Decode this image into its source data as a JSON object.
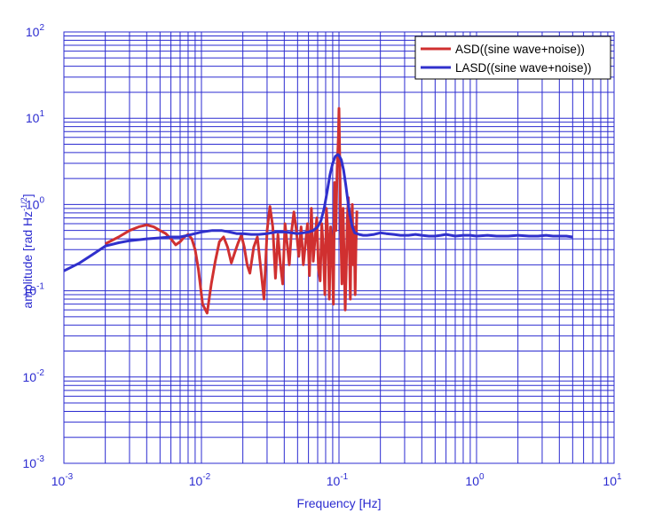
{
  "chart_data": {
    "type": "line",
    "xlabel": "Frequency  [Hz]",
    "ylabel": "amplitude  [rad Hz",
    "ylabel_sup": "-1/2",
    "ylabel_close": "]",
    "x_scale": "log",
    "y_scale": "log",
    "xlim": [
      0.001,
      10
    ],
    "ylim": [
      0.001,
      100
    ],
    "grid": true,
    "legend_position": "top-right",
    "x_ticks": [
      {
        "value": 0.001,
        "base": "10",
        "exp": "-3"
      },
      {
        "value": 0.01,
        "base": "10",
        "exp": "-2"
      },
      {
        "value": 0.1,
        "base": "10",
        "exp": "-1"
      },
      {
        "value": 1,
        "base": "10",
        "exp": "0"
      },
      {
        "value": 10,
        "base": "10",
        "exp": "1"
      }
    ],
    "y_ticks": [
      {
        "value": 0.001,
        "base": "10",
        "exp": "-3"
      },
      {
        "value": 0.01,
        "base": "10",
        "exp": "-2"
      },
      {
        "value": 0.1,
        "base": "10",
        "exp": "-1"
      },
      {
        "value": 1,
        "base": "10",
        "exp": "0"
      },
      {
        "value": 10,
        "base": "10",
        "exp": "1"
      },
      {
        "value": 100,
        "base": "10",
        "exp": "2"
      }
    ],
    "series": [
      {
        "name": "ASD((sine wave+noise))",
        "color": "#d03030",
        "x": [
          0.002,
          0.0025,
          0.003,
          0.0035,
          0.004,
          0.0045,
          0.005,
          0.0055,
          0.006,
          0.0065,
          0.007,
          0.0075,
          0.008,
          0.0085,
          0.009,
          0.0095,
          0.0102,
          0.011,
          0.0118,
          0.0126,
          0.0135,
          0.0145,
          0.0155,
          0.0165,
          0.0175,
          0.0185,
          0.0195,
          0.0205,
          0.0215,
          0.0225,
          0.024,
          0.0255,
          0.027,
          0.0285,
          0.03,
          0.0315,
          0.033,
          0.0345,
          0.036,
          0.0375,
          0.039,
          0.0405,
          0.042,
          0.0435,
          0.045,
          0.047,
          0.049,
          0.051,
          0.053,
          0.055,
          0.057,
          0.059,
          0.061,
          0.063,
          0.065,
          0.067,
          0.069,
          0.071,
          0.073,
          0.075,
          0.077,
          0.079,
          0.081,
          0.083,
          0.085,
          0.087,
          0.089,
          0.091,
          0.093,
          0.095,
          0.097,
          0.099,
          0.1,
          0.101,
          0.103,
          0.105,
          0.107,
          0.109,
          0.111,
          0.113,
          0.115,
          0.117,
          0.119,
          0.121,
          0.123,
          0.125,
          0.127,
          0.129,
          0.131,
          0.133,
          0.135
        ],
        "y": [
          0.35,
          0.42,
          0.5,
          0.55,
          0.58,
          0.55,
          0.5,
          0.46,
          0.4,
          0.34,
          0.37,
          0.42,
          0.45,
          0.4,
          0.3,
          0.18,
          0.07,
          0.055,
          0.12,
          0.22,
          0.37,
          0.42,
          0.32,
          0.21,
          0.28,
          0.36,
          0.44,
          0.32,
          0.2,
          0.16,
          0.32,
          0.42,
          0.18,
          0.08,
          0.5,
          0.95,
          0.55,
          0.14,
          0.45,
          0.2,
          0.12,
          0.6,
          0.35,
          0.2,
          0.45,
          0.82,
          0.5,
          0.25,
          0.55,
          0.2,
          0.35,
          0.6,
          0.15,
          0.9,
          0.22,
          0.4,
          0.7,
          0.18,
          0.13,
          0.6,
          0.3,
          0.09,
          0.9,
          0.45,
          0.08,
          0.55,
          0.35,
          0.07,
          1.8,
          0.5,
          2.6,
          6.0,
          13.0,
          4.5,
          0.5,
          0.12,
          0.9,
          0.25,
          0.06,
          0.18,
          0.7,
          1.2,
          0.3,
          0.08,
          0.6,
          1.0,
          0.2,
          0.55,
          0.09,
          0.35,
          0.85
        ]
      },
      {
        "name": "LASD((sine wave+noise))",
        "color": "#3030cc",
        "x": [
          0.001,
          0.0013,
          0.0016,
          0.002,
          0.0025,
          0.003,
          0.004,
          0.005,
          0.006,
          0.007,
          0.008,
          0.009,
          0.01,
          0.012,
          0.014,
          0.016,
          0.018,
          0.02,
          0.023,
          0.026,
          0.03,
          0.035,
          0.04,
          0.045,
          0.05,
          0.055,
          0.06,
          0.065,
          0.07,
          0.074,
          0.078,
          0.082,
          0.086,
          0.09,
          0.094,
          0.098,
          0.1,
          0.104,
          0.108,
          0.112,
          0.116,
          0.12,
          0.125,
          0.13,
          0.14,
          0.15,
          0.16,
          0.18,
          0.2,
          0.22,
          0.25,
          0.28,
          0.32,
          0.36,
          0.4,
          0.45,
          0.5,
          0.55,
          0.6,
          0.7,
          0.8,
          0.9,
          1.0,
          1.2,
          1.4,
          1.7,
          2.0,
          2.4,
          2.8,
          3.2,
          3.6,
          4.0,
          4.5,
          5.0
        ],
        "y": [
          0.17,
          0.21,
          0.26,
          0.33,
          0.36,
          0.38,
          0.4,
          0.41,
          0.42,
          0.42,
          0.44,
          0.46,
          0.48,
          0.5,
          0.5,
          0.48,
          0.46,
          0.46,
          0.45,
          0.45,
          0.46,
          0.48,
          0.48,
          0.47,
          0.46,
          0.47,
          0.48,
          0.5,
          0.55,
          0.65,
          0.9,
          1.4,
          2.2,
          3.0,
          3.6,
          3.8,
          3.7,
          3.3,
          2.5,
          1.7,
          1.1,
          0.75,
          0.55,
          0.47,
          0.45,
          0.44,
          0.44,
          0.45,
          0.47,
          0.46,
          0.45,
          0.44,
          0.44,
          0.45,
          0.44,
          0.43,
          0.43,
          0.44,
          0.45,
          0.43,
          0.44,
          0.44,
          0.43,
          0.44,
          0.43,
          0.43,
          0.44,
          0.43,
          0.43,
          0.44,
          0.43,
          0.43,
          0.43,
          0.42
        ]
      }
    ]
  }
}
